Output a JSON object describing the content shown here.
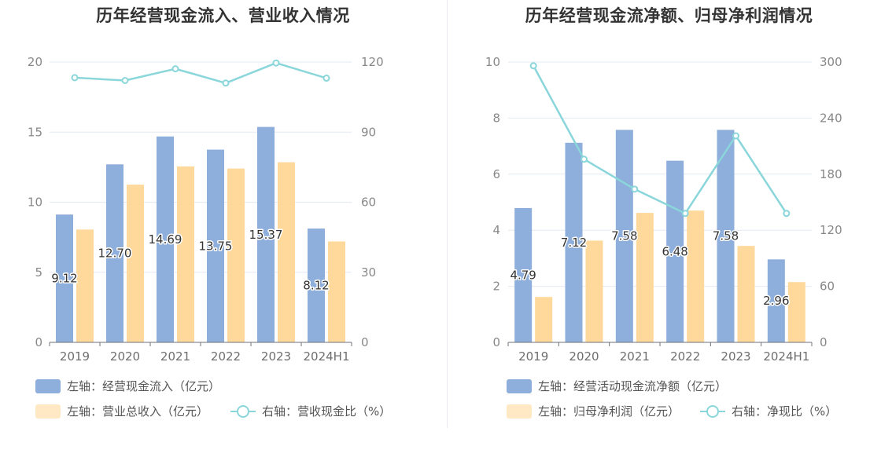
{
  "charts": [
    {
      "title": "历年经营现金流入、营业收入情况",
      "legend": [
        {
          "label": "左轴：经营现金流入（亿元）",
          "kind": "bar",
          "color": "#8eaedb"
        },
        {
          "label": "左轴：营业总收入（亿元）",
          "kind": "bar",
          "color": "#ffe8c4"
        },
        {
          "label": "右轴：营收现金比（%）",
          "kind": "line",
          "color": "#8ad6da"
        }
      ]
    },
    {
      "title": "历年经营现金流净额、归母净利润情况",
      "legend": [
        {
          "label": "左轴：经营活动现金流净额（亿元）",
          "kind": "bar",
          "color": "#8eaedb"
        },
        {
          "label": "左轴：归母净利润（亿元）",
          "kind": "bar",
          "color": "#ffe8c4"
        },
        {
          "label": "右轴：净现比（%）",
          "kind": "line",
          "color": "#8ad6da"
        }
      ]
    }
  ],
  "chart_data": [
    {
      "type": "bar",
      "title": "历年经营现金流入、营业收入情况",
      "categories": [
        "2019",
        "2020",
        "2021",
        "2022",
        "2023",
        "2024H1"
      ],
      "left_axis": {
        "ticks": [
          "0",
          "5",
          "10",
          "15",
          "20"
        ],
        "range": [
          0,
          20
        ]
      },
      "right_axis": {
        "ticks": [
          "0",
          "30",
          "60",
          "90",
          "120"
        ],
        "range": [
          0,
          120
        ]
      },
      "series": [
        {
          "name": "经营现金流入（亿元）",
          "axis": "left",
          "type": "bar",
          "color": "#8eaedb",
          "values": [
            9.12,
            12.7,
            14.69,
            13.75,
            15.37,
            8.12
          ],
          "labels": [
            "9.12",
            "12.70",
            "14.69",
            "13.75",
            "15.37",
            "8.12"
          ]
        },
        {
          "name": "营业总收入（亿元）",
          "axis": "left",
          "type": "bar",
          "color": "#ffd99b",
          "values": [
            8.05,
            11.25,
            12.55,
            12.4,
            12.85,
            7.2
          ]
        },
        {
          "name": "营收现金比（%）",
          "axis": "right",
          "type": "line",
          "color": "#8ad6da",
          "values": [
            113.3,
            112.1,
            117.1,
            111.0,
            119.6,
            113.1
          ]
        }
      ],
      "grid": true,
      "legend_position": "bottom-left"
    },
    {
      "type": "bar",
      "title": "历年经营现金流净额、归母净利润情况",
      "categories": [
        "2019",
        "2020",
        "2021",
        "2022",
        "2023",
        "2024H1"
      ],
      "left_axis": {
        "ticks": [
          "0",
          "2",
          "4",
          "6",
          "8",
          "10"
        ],
        "range": [
          0,
          10
        ]
      },
      "right_axis": {
        "ticks": [
          "0",
          "60",
          "120",
          "180",
          "240",
          "300"
        ],
        "range": [
          0,
          300
        ]
      },
      "series": [
        {
          "name": "经营活动现金流净额（亿元）",
          "axis": "left",
          "type": "bar",
          "color": "#8eaedb",
          "values": [
            4.79,
            7.12,
            7.58,
            6.48,
            7.58,
            2.96
          ],
          "labels": [
            "4.79",
            "7.12",
            "7.58",
            "6.48",
            "7.58",
            "2.96"
          ]
        },
        {
          "name": "归母净利润（亿元）",
          "axis": "left",
          "type": "bar",
          "color": "#ffd99b",
          "values": [
            1.62,
            3.63,
            4.62,
            4.7,
            3.44,
            2.15
          ]
        },
        {
          "name": "净现比（%）",
          "axis": "right",
          "type": "line",
          "color": "#8ad6da",
          "values": [
            296.0,
            196.0,
            164.0,
            138.0,
            221.0,
            138.0
          ]
        }
      ],
      "grid": true,
      "legend_position": "bottom-left"
    }
  ]
}
